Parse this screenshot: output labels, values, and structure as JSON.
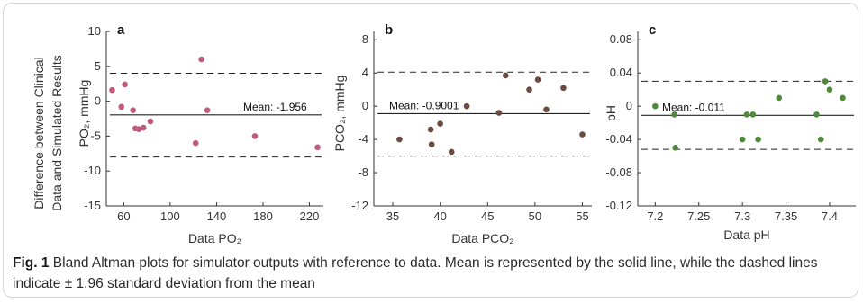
{
  "caption": {
    "label": "Fig. 1",
    "text": " Bland Altman plots for simulator outputs with reference to data. Mean is represented by the solid line, while the dashed lines indicate ± 1.96 standard deviation from the mean"
  },
  "colors": {
    "po2": "#c05a7e",
    "pco2": "#6b4a40",
    "ph": "#4f8a3a"
  },
  "shared_ylabel": [
    "Difference between Clinical",
    "Data and Simulated Results"
  ],
  "chart_data": [
    {
      "type": "scatter",
      "panel": "a",
      "xlabel": "Data PO₂",
      "ylabel": "PO₂, mmHg",
      "xlim": [
        45,
        232
      ],
      "ylim": [
        -15,
        10
      ],
      "xticks": [
        60,
        100,
        140,
        180,
        220
      ],
      "yticks": [
        -15,
        -10,
        -5,
        0,
        5,
        10
      ],
      "mean": -1.956,
      "upper_loa": 4.0,
      "lower_loa": -8.0,
      "mean_label": "Mean: -1.956",
      "points": [
        {
          "x": 50,
          "y": 1.6
        },
        {
          "x": 58,
          "y": -0.8
        },
        {
          "x": 61,
          "y": 2.4
        },
        {
          "x": 68,
          "y": -1.3
        },
        {
          "x": 70,
          "y": -3.9
        },
        {
          "x": 73,
          "y": -4.0
        },
        {
          "x": 77,
          "y": -3.8
        },
        {
          "x": 83,
          "y": -2.9
        },
        {
          "x": 122,
          "y": -6.0
        },
        {
          "x": 127,
          "y": 6.0
        },
        {
          "x": 132,
          "y": -1.3
        },
        {
          "x": 173,
          "y": -5.0
        },
        {
          "x": 227,
          "y": -6.6
        }
      ]
    },
    {
      "type": "scatter",
      "panel": "b",
      "xlabel": "Data PCO₂",
      "ylabel": "PCO₂, mmHg",
      "xlim": [
        33,
        56
      ],
      "ylim": [
        -12,
        9
      ],
      "xticks": [
        35,
        40,
        45,
        50,
        55
      ],
      "yticks": [
        -12,
        -8,
        -4,
        0,
        4,
        8
      ],
      "mean": -0.9001,
      "upper_loa": 4.1,
      "lower_loa": -6.0,
      "mean_label": "Mean: -0.9001",
      "points": [
        {
          "x": 35.7,
          "y": -4.0
        },
        {
          "x": 39.0,
          "y": -2.8
        },
        {
          "x": 39.1,
          "y": -4.6
        },
        {
          "x": 40.0,
          "y": -2.1
        },
        {
          "x": 41.2,
          "y": -5.5
        },
        {
          "x": 42.8,
          "y": 0.0
        },
        {
          "x": 46.2,
          "y": -0.8
        },
        {
          "x": 46.9,
          "y": 3.7
        },
        {
          "x": 49.4,
          "y": 2.0
        },
        {
          "x": 50.3,
          "y": 3.2
        },
        {
          "x": 51.2,
          "y": -0.4
        },
        {
          "x": 53.0,
          "y": 2.2
        },
        {
          "x": 55.0,
          "y": -3.4
        }
      ]
    },
    {
      "type": "scatter",
      "panel": "c",
      "xlabel": "Data pH",
      "ylabel": "pH",
      "xlim": [
        7.18,
        7.43
      ],
      "ylim": [
        -0.12,
        0.09
      ],
      "xticks": [
        7.2,
        7.25,
        7.3,
        7.35,
        7.4
      ],
      "yticks": [
        -0.12,
        -0.08,
        -0.04,
        0,
        0.04,
        0.08
      ],
      "ytick_labels": [
        "-0.12",
        "-0.08",
        "-0.04",
        "0",
        "0.04",
        "0.08"
      ],
      "mean": -0.011,
      "upper_loa": 0.03,
      "lower_loa": -0.052,
      "mean_label": "Mean: -0.011",
      "points": [
        {
          "x": 7.2,
          "y": 0.0
        },
        {
          "x": 7.222,
          "y": -0.01
        },
        {
          "x": 7.223,
          "y": -0.05
        },
        {
          "x": 7.3,
          "y": -0.04
        },
        {
          "x": 7.305,
          "y": -0.01
        },
        {
          "x": 7.312,
          "y": -0.01
        },
        {
          "x": 7.318,
          "y": -0.04
        },
        {
          "x": 7.342,
          "y": 0.01
        },
        {
          "x": 7.385,
          "y": -0.01
        },
        {
          "x": 7.39,
          "y": -0.04
        },
        {
          "x": 7.395,
          "y": 0.03
        },
        {
          "x": 7.4,
          "y": 0.02
        },
        {
          "x": 7.415,
          "y": 0.01
        }
      ]
    }
  ]
}
